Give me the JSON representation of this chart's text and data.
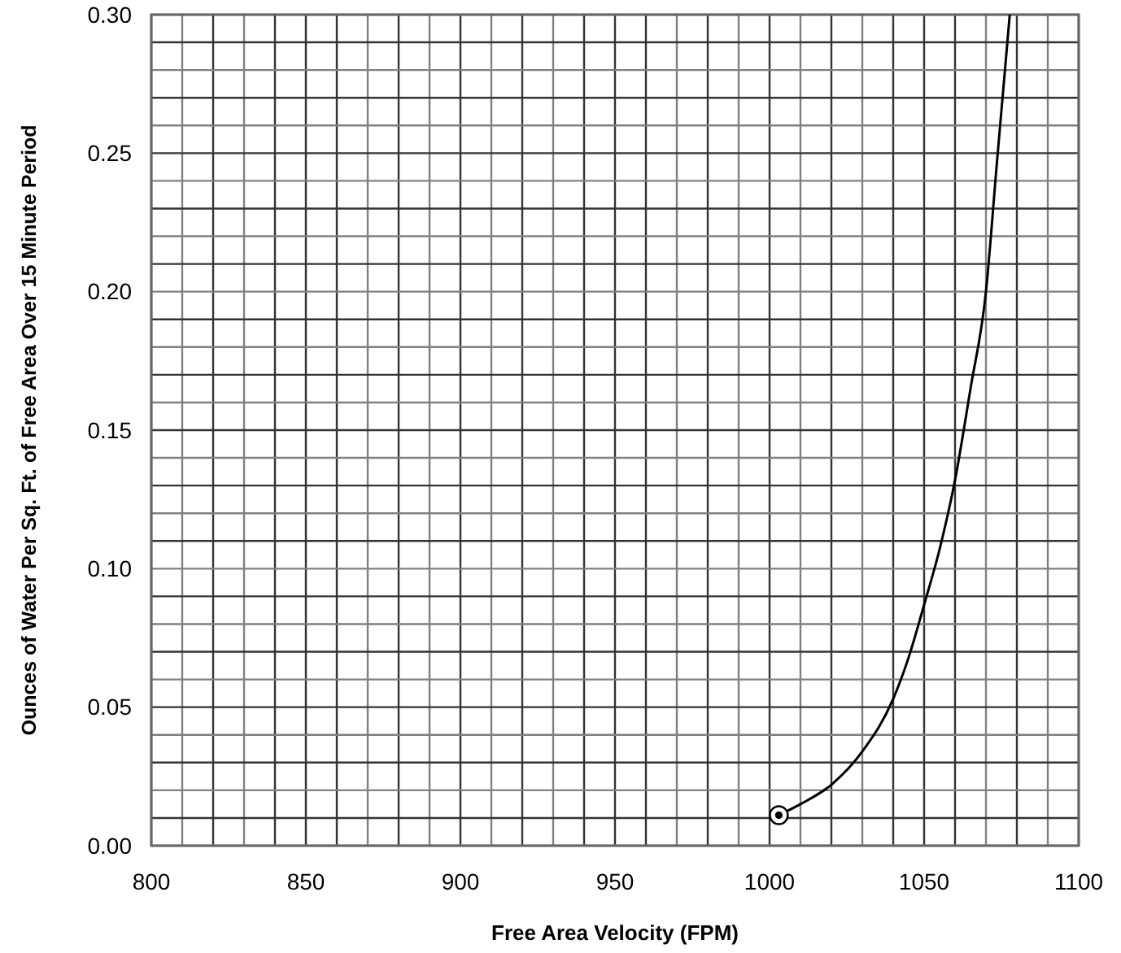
{
  "chart_data": {
    "type": "line",
    "xlabel": "Free Area Velocity (FPM)",
    "ylabel": "Ounces of Water Per Sq. Ft. of Free Area Over 15 Minute Period",
    "xlim": [
      800,
      1100
    ],
    "xticks": [
      800,
      {
        "value": 810,
        "label": null
      },
      {
        "value": 820,
        "label": null
      },
      {
        "value": 830,
        "label": null
      },
      {
        "value": 840,
        "label": null
      },
      850,
      {
        "value": 860,
        "label": null
      },
      {
        "value": 870,
        "label": null
      },
      {
        "value": 880,
        "label": null
      },
      {
        "value": 890,
        "label": null
      },
      900,
      {
        "value": 910,
        "label": null
      },
      {
        "value": 920,
        "label": null
      },
      {
        "value": 930,
        "label": null
      },
      {
        "value": 940,
        "label": null
      },
      950,
      {
        "value": 960,
        "label": null
      },
      {
        "value": 970,
        "label": null
      },
      {
        "value": 980,
        "label": null
      },
      {
        "value": 990,
        "label": null
      },
      1000,
      {
        "value": 1010,
        "label": null
      },
      {
        "value": 1020,
        "label": null
      },
      {
        "value": 1030,
        "label": null
      },
      {
        "value": 1040,
        "label": null
      },
      1050,
      {
        "value": 1060,
        "label": null
      },
      {
        "value": 1070,
        "label": null
      },
      {
        "value": 1080,
        "label": null
      },
      {
        "value": 1090,
        "label": null
      },
      1100
    ],
    "ylim": [
      0,
      0.3
    ],
    "yticks": [
      {
        "value": 0,
        "label": "0.00"
      },
      {
        "value": 0.01,
        "label": null
      },
      {
        "value": 0.02,
        "label": null
      },
      {
        "value": 0.03,
        "label": null
      },
      {
        "value": 0.04,
        "label": null
      },
      0.05,
      {
        "value": 0.06,
        "label": null
      },
      {
        "value": 0.07,
        "label": null
      },
      {
        "value": 0.08,
        "label": null
      },
      {
        "value": 0.09,
        "label": null
      },
      {
        "value": 0.1,
        "label": "0.10"
      },
      {
        "value": 0.11,
        "label": null
      },
      {
        "value": 0.12,
        "label": null
      },
      {
        "value": 0.13,
        "label": null
      },
      {
        "value": 0.14,
        "label": null
      },
      0.15,
      {
        "value": 0.16,
        "label": null
      },
      {
        "value": 0.17,
        "label": null
      },
      {
        "value": 0.18,
        "label": null
      },
      {
        "value": 0.19,
        "label": null
      },
      {
        "value": 0.2,
        "label": "0.20"
      },
      {
        "value": 0.21,
        "label": null
      },
      {
        "value": 0.22,
        "label": null
      },
      {
        "value": 0.23,
        "label": null
      },
      {
        "value": 0.24,
        "label": null
      },
      0.25,
      {
        "value": 0.26,
        "label": null
      },
      {
        "value": 0.27,
        "label": null
      },
      {
        "value": 0.28,
        "label": null
      },
      {
        "value": 0.29,
        "label": null
      },
      {
        "value": 0.3,
        "label": "0.30"
      }
    ],
    "grid": true,
    "series": [
      {
        "color": "#000000",
        "marker": "none",
        "x": [
          1003,
          1010,
          1020,
          1030,
          1040,
          1045,
          1050,
          1055,
          1060,
          1065,
          1070,
          1073.5,
          1077.7
        ],
        "values": [
          0.011,
          0.015,
          0.022,
          0.034,
          0.053,
          0.068,
          0.087,
          0.107,
          0.132,
          0.165,
          0.2,
          0.246,
          0.3
        ]
      },
      {
        "type": "scatter",
        "color": "#000000",
        "marker": "circle",
        "x": [
          1003
        ],
        "values": [
          0.011
        ]
      }
    ]
  }
}
